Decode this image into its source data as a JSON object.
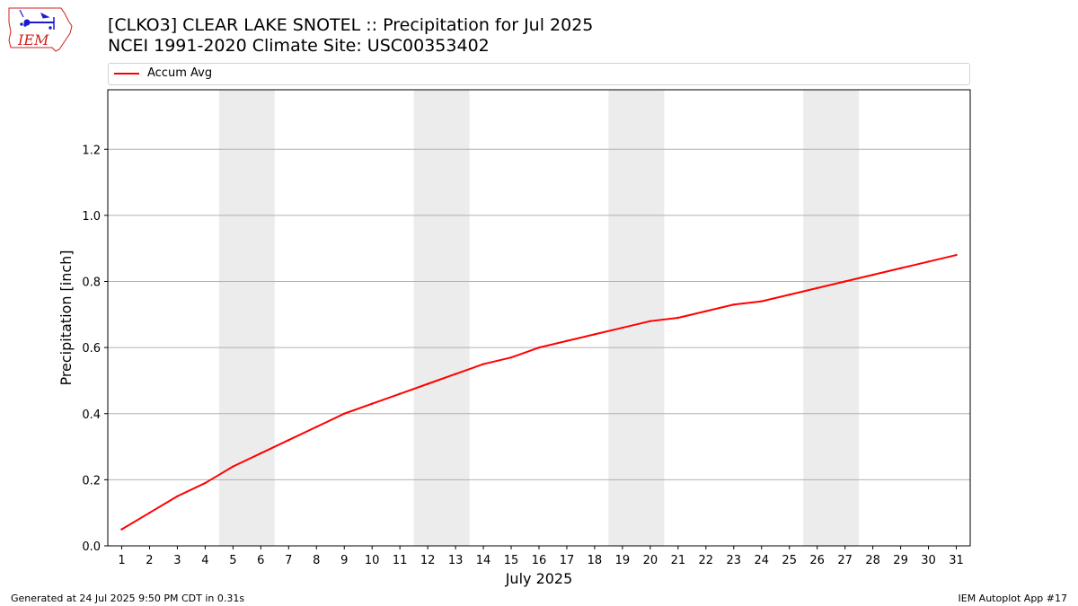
{
  "header": {
    "logo_text": "IEM",
    "title_line1": "[CLKO3] CLEAR LAKE SNOTEL :: Precipitation for Jul 2025",
    "title_line2": "NCEI 1991-2020 Climate Site: USC00353402"
  },
  "footer": {
    "left": "Generated at 24 Jul 2025 9:50 PM CDT in 0.31s",
    "right": "IEM Autoplot App #17"
  },
  "colors": {
    "series": "#ff0000",
    "weekend_band": "#ececec",
    "grid": "#b0b0b0",
    "logo": "#d02020",
    "logo_icons": "#1a1ad0"
  },
  "chart_data": {
    "type": "line",
    "title": "[CLKO3] CLEAR LAKE SNOTEL :: Precipitation for Jul 2025",
    "subtitle": "NCEI 1991-2020 Climate Site: USC00353402",
    "xlabel": "July 2025",
    "ylabel": "Precipitation [inch]",
    "x": [
      1,
      2,
      3,
      4,
      5,
      6,
      7,
      8,
      9,
      10,
      11,
      12,
      13,
      14,
      15,
      16,
      17,
      18,
      19,
      20,
      21,
      22,
      23,
      24,
      25,
      26,
      27,
      28,
      29,
      30,
      31
    ],
    "xlim": [
      0.5,
      31.5
    ],
    "ylim": [
      0,
      1.38
    ],
    "yticks": [
      0.0,
      0.2,
      0.4,
      0.6,
      0.8,
      1.0,
      1.2
    ],
    "ytick_labels": [
      "0.0",
      "0.2",
      "0.4",
      "0.6",
      "0.8",
      "1.0",
      "1.2"
    ],
    "grid": "horizontal",
    "legend_position": "top, above plot",
    "shaded_bands": [
      [
        4.5,
        6.5
      ],
      [
        11.5,
        13.5
      ],
      [
        18.5,
        20.5
      ],
      [
        25.5,
        27.5
      ]
    ],
    "series": [
      {
        "name": "Accum Avg",
        "color": "#ff0000",
        "values": [
          0.05,
          0.1,
          0.15,
          0.19,
          0.24,
          0.28,
          0.32,
          0.36,
          0.4,
          0.43,
          0.46,
          0.49,
          0.52,
          0.55,
          0.57,
          0.6,
          0.62,
          0.64,
          0.66,
          0.68,
          0.69,
          0.71,
          0.73,
          0.74,
          0.76,
          0.78,
          0.8,
          0.82,
          0.84,
          0.86,
          0.88
        ]
      }
    ]
  }
}
